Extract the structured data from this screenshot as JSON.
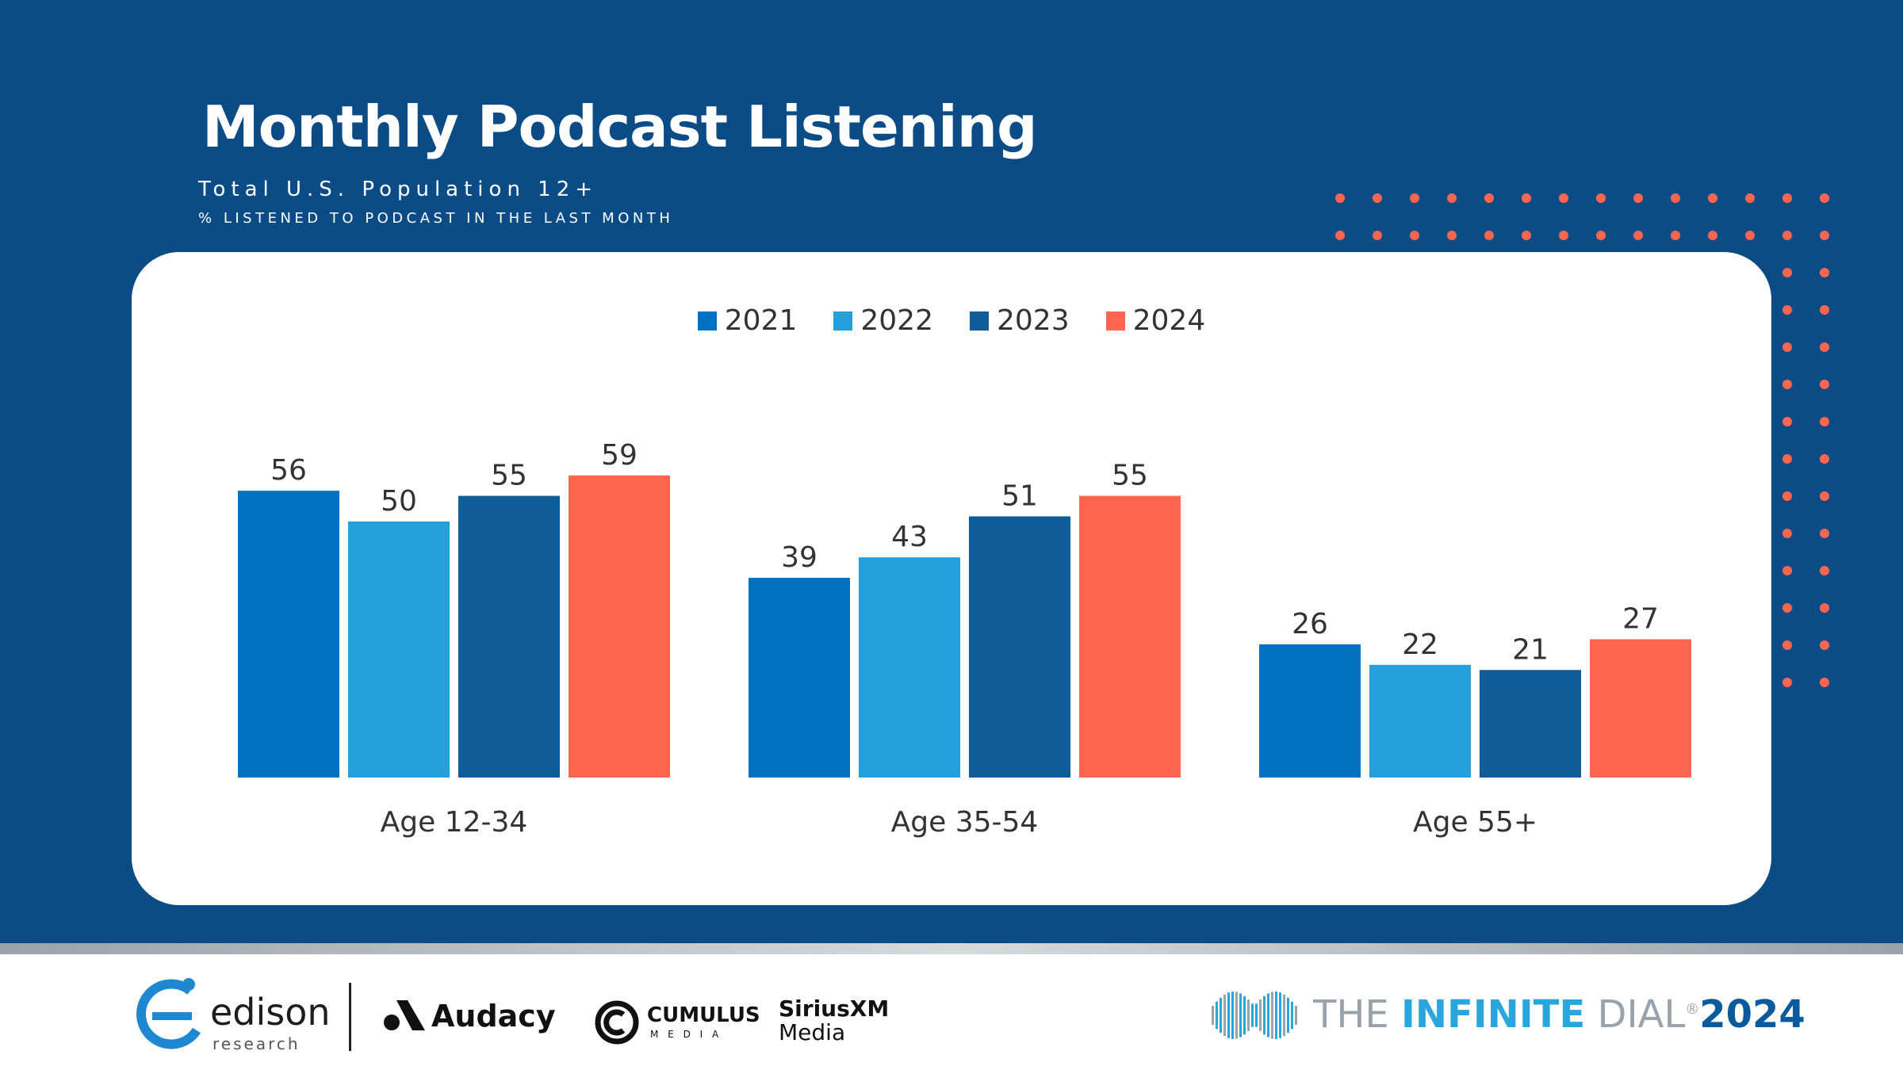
{
  "title": "Monthly Podcast Listening",
  "subtitle": "Total U.S. Population 12+",
  "note": "% LISTENED TO PODCAST IN THE LAST MONTH",
  "chart_data": {
    "type": "bar",
    "categories": [
      "Age 12-34",
      "Age 35-54",
      "Age 55+"
    ],
    "series": [
      {
        "name": "2021",
        "color": "#0070c0",
        "values": [
          56,
          39,
          26
        ]
      },
      {
        "name": "2022",
        "color": "#25a0da",
        "values": [
          50,
          43,
          22
        ]
      },
      {
        "name": "2023",
        "color": "#0e5c98",
        "values": [
          55,
          51,
          21
        ]
      },
      {
        "name": "2024",
        "color": "#ff6650",
        "values": [
          59,
          55,
          27
        ]
      }
    ],
    "ylim": [
      0,
      65
    ],
    "grid": false,
    "legend": "top-center",
    "data_labels": true
  },
  "footer": {
    "edison": {
      "name": "edison",
      "sub": "research"
    },
    "audacy": "Audacy",
    "cumulus": {
      "name": "CUMULUS",
      "sub": "M E D I A"
    },
    "siriusxm": {
      "name": "SiriusXM",
      "sub": "Media"
    },
    "infinite_dial": {
      "prefix": "THE ",
      "bold": "INFINITE",
      "suffix": " DIAL",
      "year": "2024",
      "mark": "®"
    }
  },
  "colors": {
    "background": "#0b4c86",
    "accent": "#ff6650",
    "edison_blue": "#1e88d0"
  }
}
